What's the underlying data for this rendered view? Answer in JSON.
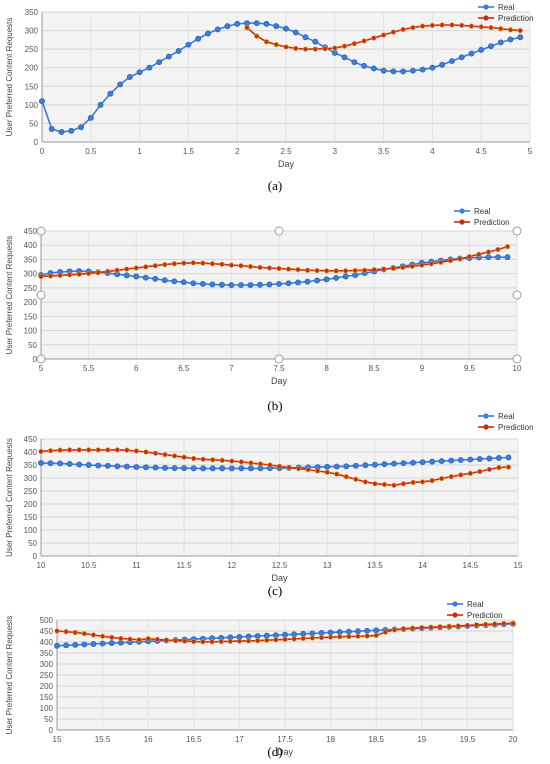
{
  "chart_data": [
    {
      "type": "line",
      "caption": "(a)",
      "xlabel": "Day",
      "ylabel": "User Preferred Content Requests",
      "xlim": [
        0,
        5
      ],
      "ylim": [
        0,
        350
      ],
      "xticks": [
        "0",
        "0.5",
        "1",
        "1.5",
        "2",
        "2.5",
        "3",
        "3.5",
        "4",
        "4.5",
        "5"
      ],
      "yticks": [
        "0",
        "50",
        "100",
        "150",
        "200",
        "250",
        "300",
        "350"
      ],
      "grid": true,
      "legend": "top-right",
      "series": [
        {
          "name": "Real",
          "color": "#3b7dd8",
          "x": [
            0,
            0.1,
            0.2,
            0.3,
            0.4,
            0.5,
            0.6,
            0.7,
            0.8,
            0.9,
            1.0,
            1.1,
            1.2,
            1.3,
            1.4,
            1.5,
            1.6,
            1.7,
            1.8,
            1.9,
            2.0,
            2.1,
            2.2,
            2.3,
            2.4,
            2.5,
            2.6,
            2.7,
            2.8,
            2.9,
            3.0,
            3.1,
            3.2,
            3.3,
            3.4,
            3.5,
            3.6,
            3.7,
            3.8,
            3.9,
            4.0,
            4.1,
            4.2,
            4.3,
            4.4,
            4.5,
            4.6,
            4.7,
            4.8,
            4.9
          ],
          "y": [
            110,
            35,
            27,
            30,
            40,
            65,
            100,
            130,
            155,
            175,
            188,
            200,
            215,
            230,
            245,
            262,
            278,
            292,
            303,
            312,
            318,
            320,
            320,
            318,
            312,
            305,
            295,
            282,
            270,
            255,
            240,
            228,
            215,
            205,
            198,
            192,
            190,
            190,
            192,
            195,
            200,
            208,
            218,
            228,
            238,
            248,
            258,
            268,
            276,
            282
          ]
        },
        {
          "name": "Prediction",
          "color": "#c42f10",
          "x": [
            2.1,
            2.2,
            2.3,
            2.4,
            2.5,
            2.6,
            2.7,
            2.8,
            2.9,
            3.0,
            3.1,
            3.2,
            3.3,
            3.4,
            3.5,
            3.6,
            3.7,
            3.8,
            3.9,
            4.0,
            4.1,
            4.2,
            4.3,
            4.4,
            4.5,
            4.6,
            4.7,
            4.8,
            4.9
          ],
          "y": [
            308,
            285,
            270,
            262,
            256,
            252,
            250,
            250,
            251,
            253,
            258,
            265,
            272,
            280,
            288,
            296,
            303,
            308,
            312,
            314,
            315,
            315,
            314,
            312,
            310,
            308,
            305,
            302,
            300
          ]
        }
      ]
    },
    {
      "type": "line",
      "caption": "(b)",
      "xlabel": "Day",
      "ylabel": "User Preferred Content Requests",
      "xlim": [
        5,
        10
      ],
      "ylim": [
        0,
        450
      ],
      "xticks": [
        "5",
        "5.5",
        "6",
        "6.5",
        "7",
        "7.5",
        "8",
        "8.5",
        "9",
        "9.5",
        "10"
      ],
      "yticks": [
        "0",
        "50",
        "100",
        "150",
        "200",
        "250",
        "300",
        "350",
        "400",
        "450"
      ],
      "grid": true,
      "legend": "top-right",
      "series": [
        {
          "name": "Real",
          "color": "#3b7dd8",
          "x": [
            5.0,
            5.1,
            5.2,
            5.3,
            5.4,
            5.5,
            5.6,
            5.7,
            5.8,
            5.9,
            6.0,
            6.1,
            6.2,
            6.3,
            6.4,
            6.5,
            6.6,
            6.7,
            6.8,
            6.9,
            7.0,
            7.1,
            7.2,
            7.3,
            7.4,
            7.5,
            7.6,
            7.7,
            7.8,
            7.9,
            8.0,
            8.1,
            8.2,
            8.3,
            8.4,
            8.5,
            8.6,
            8.7,
            8.8,
            8.9,
            9.0,
            9.1,
            9.2,
            9.3,
            9.4,
            9.5,
            9.6,
            9.7,
            9.8,
            9.9
          ],
          "y": [
            295,
            302,
            306,
            308,
            309,
            308,
            305,
            302,
            298,
            294,
            290,
            286,
            282,
            277,
            273,
            270,
            266,
            264,
            262,
            261,
            260,
            260,
            260,
            261,
            262,
            264,
            266,
            269,
            272,
            276,
            280,
            285,
            290,
            295,
            302,
            308,
            315,
            320,
            326,
            332,
            338,
            342,
            346,
            350,
            353,
            355,
            357,
            358,
            358,
            358
          ]
        },
        {
          "name": "Prediction",
          "color": "#c42f10",
          "x": [
            5.0,
            5.1,
            5.2,
            5.3,
            5.4,
            5.5,
            5.6,
            5.7,
            5.8,
            5.9,
            6.0,
            6.1,
            6.2,
            6.3,
            6.4,
            6.5,
            6.6,
            6.7,
            6.8,
            6.9,
            7.0,
            7.1,
            7.2,
            7.3,
            7.4,
            7.5,
            7.6,
            7.7,
            7.8,
            7.9,
            8.0,
            8.1,
            8.2,
            8.3,
            8.4,
            8.5,
            8.6,
            8.7,
            8.8,
            8.9,
            9.0,
            9.1,
            9.2,
            9.3,
            9.4,
            9.5,
            9.6,
            9.7,
            9.8,
            9.9
          ],
          "y": [
            290,
            292,
            294,
            296,
            298,
            301,
            304,
            308,
            312,
            316,
            320,
            324,
            328,
            332,
            335,
            337,
            338,
            337,
            335,
            333,
            330,
            328,
            325,
            322,
            320,
            318,
            316,
            314,
            312,
            311,
            310,
            310,
            310,
            311,
            312,
            314,
            316,
            319,
            322,
            326,
            330,
            335,
            340,
            346,
            352,
            360,
            368,
            376,
            385,
            395
          ]
        }
      ]
    },
    {
      "type": "line",
      "caption": "(c)",
      "xlabel": "Day",
      "ylabel": "User Preferred Content Requests",
      "xlim": [
        10,
        15
      ],
      "ylim": [
        0,
        450
      ],
      "xticks": [
        "10",
        "10.5",
        "11",
        "11.5",
        "12",
        "12.5",
        "13",
        "13.5",
        "14",
        "14.5",
        "15"
      ],
      "yticks": [
        "0",
        "50",
        "100",
        "150",
        "200",
        "250",
        "300",
        "350",
        "400",
        "450"
      ],
      "grid": true,
      "legend": "top-right",
      "series": [
        {
          "name": "Real",
          "color": "#3b7dd8",
          "x": [
            10.0,
            10.1,
            10.2,
            10.3,
            10.4,
            10.5,
            10.6,
            10.7,
            10.8,
            10.9,
            11.0,
            11.1,
            11.2,
            11.3,
            11.4,
            11.5,
            11.6,
            11.7,
            11.8,
            11.9,
            12.0,
            12.1,
            12.2,
            12.3,
            12.4,
            12.5,
            12.6,
            12.7,
            12.8,
            12.9,
            13.0,
            13.1,
            13.2,
            13.3,
            13.4,
            13.5,
            13.6,
            13.7,
            13.8,
            13.9,
            14.0,
            14.1,
            14.2,
            14.3,
            14.4,
            14.5,
            14.6,
            14.7,
            14.8,
            14.9
          ],
          "y": [
            358,
            357,
            356,
            354,
            352,
            350,
            348,
            347,
            345,
            344,
            342,
            341,
            340,
            339,
            338,
            338,
            337,
            337,
            337,
            337,
            337,
            337,
            337,
            337,
            338,
            338,
            339,
            340,
            341,
            342,
            343,
            344,
            345,
            347,
            349,
            351,
            353,
            355,
            357,
            359,
            361,
            363,
            365,
            367,
            369,
            371,
            373,
            375,
            377,
            379
          ]
        },
        {
          "name": "Prediction",
          "color": "#c42f10",
          "x": [
            10.0,
            10.1,
            10.2,
            10.3,
            10.4,
            10.5,
            10.6,
            10.7,
            10.8,
            10.9,
            11.0,
            11.1,
            11.2,
            11.3,
            11.4,
            11.5,
            11.6,
            11.7,
            11.8,
            11.9,
            12.0,
            12.1,
            12.2,
            12.3,
            12.4,
            12.5,
            12.6,
            12.7,
            12.8,
            12.9,
            13.0,
            13.1,
            13.2,
            13.3,
            13.4,
            13.5,
            13.6,
            13.7,
            13.8,
            13.9,
            14.0,
            14.1,
            14.2,
            14.3,
            14.4,
            14.5,
            14.6,
            14.7,
            14.8,
            14.9
          ],
          "y": [
            402,
            405,
            407,
            408,
            408,
            408,
            408,
            408,
            408,
            407,
            404,
            400,
            395,
            390,
            385,
            380,
            375,
            372,
            370,
            368,
            365,
            362,
            358,
            354,
            350,
            345,
            340,
            336,
            332,
            327,
            322,
            315,
            305,
            295,
            285,
            278,
            275,
            272,
            278,
            283,
            285,
            290,
            298,
            305,
            312,
            318,
            325,
            333,
            340,
            342
          ]
        }
      ]
    },
    {
      "type": "line",
      "caption": "(d)",
      "xlabel": "Day",
      "ylabel": "User Preferred Content Requests",
      "xlim": [
        15,
        20
      ],
      "ylim": [
        0,
        500
      ],
      "xticks": [
        "15",
        "15.5",
        "16",
        "16.5",
        "17",
        "17.5",
        "18",
        "18.5",
        "19",
        "19.5",
        "20"
      ],
      "yticks": [
        "0",
        "50",
        "100",
        "150",
        "200",
        "250",
        "300",
        "350",
        "400",
        "450",
        "500"
      ],
      "grid": true,
      "legend": "top-right",
      "series": [
        {
          "name": "Real",
          "color": "#3b7dd8",
          "x": [
            15.0,
            15.1,
            15.2,
            15.3,
            15.4,
            15.5,
            15.6,
            15.7,
            15.8,
            15.9,
            16.0,
            16.1,
            16.2,
            16.3,
            16.4,
            16.5,
            16.6,
            16.7,
            16.8,
            16.9,
            17.0,
            17.1,
            17.2,
            17.3,
            17.4,
            17.5,
            17.6,
            17.7,
            17.8,
            17.9,
            18.0,
            18.1,
            18.2,
            18.3,
            18.4,
            18.5,
            18.6,
            18.7,
            18.8,
            18.9,
            19.0,
            19.1,
            19.2,
            19.3,
            19.4,
            19.5,
            19.6,
            19.7,
            19.8,
            19.9,
            20.0
          ],
          "y": [
            383,
            385,
            387,
            389,
            391,
            393,
            395,
            397,
            399,
            401,
            403,
            405,
            407,
            409,
            411,
            413,
            415,
            417,
            419,
            421,
            423,
            425,
            427,
            429,
            431,
            433,
            435,
            437,
            439,
            441,
            443,
            445,
            447,
            449,
            451,
            453,
            455,
            457,
            459,
            461,
            463,
            465,
            467,
            469,
            471,
            473,
            475,
            477,
            479,
            481,
            483
          ]
        },
        {
          "name": "Prediction",
          "color": "#c42f10",
          "x": [
            15.0,
            15.1,
            15.2,
            15.3,
            15.4,
            15.5,
            15.6,
            15.7,
            15.8,
            15.9,
            16.0,
            16.1,
            16.2,
            16.3,
            16.4,
            16.5,
            16.6,
            16.7,
            16.8,
            16.9,
            17.0,
            17.1,
            17.2,
            17.3,
            17.4,
            17.5,
            17.6,
            17.7,
            17.8,
            17.9,
            18.0,
            18.1,
            18.2,
            18.3,
            18.4,
            18.5,
            18.6,
            18.7,
            18.8,
            18.9,
            19.0,
            19.1,
            19.2,
            19.3,
            19.4,
            19.5,
            19.6,
            19.7,
            19.8,
            19.9,
            20.0
          ],
          "y": [
            450,
            447,
            443,
            438,
            432,
            426,
            421,
            416,
            413,
            410,
            415,
            412,
            409,
            406,
            404,
            402,
            401,
            401,
            402,
            403,
            404,
            405,
            406,
            408,
            410,
            412,
            414,
            416,
            418,
            420,
            422,
            424,
            425,
            426,
            427,
            430,
            445,
            455,
            460,
            463,
            465,
            467,
            469,
            471,
            473,
            475,
            478,
            480,
            482,
            484,
            485
          ]
        }
      ]
    }
  ]
}
